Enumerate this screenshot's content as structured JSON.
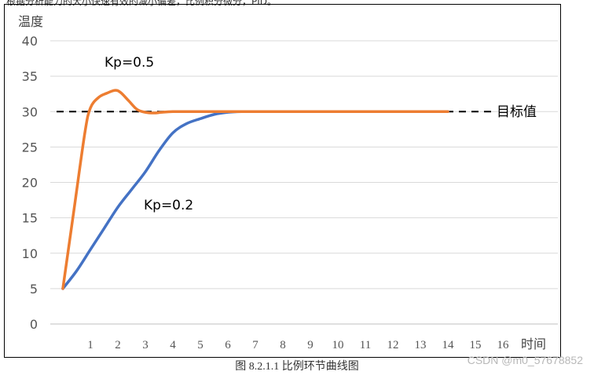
{
  "header_text": "根据分析能力的大小快速有效的减小偏差，比例积分微分，PID。",
  "caption": "图 8.2.1.1  比例环节曲线图",
  "watermark": "CSDN @m0_57678852",
  "chart_data": {
    "type": "line",
    "ylabel": "温度",
    "xlabel": "时间",
    "ylim": [
      0,
      40
    ],
    "yticks": [
      0,
      5,
      10,
      15,
      20,
      25,
      30,
      35,
      40
    ],
    "xlim": [
      0,
      17
    ],
    "xticks": [
      1,
      2,
      3,
      4,
      5,
      6,
      7,
      8,
      9,
      10,
      11,
      12,
      13,
      14,
      15,
      16
    ],
    "grid": true,
    "series": [
      {
        "name": "Kp=0.5",
        "color": "#ED7D31",
        "x": [
          0,
          0.4,
          0.8,
          1.0,
          1.3,
          1.6,
          1.9,
          2.1,
          2.4,
          2.7,
          3.0,
          3.3,
          3.6,
          4.0,
          5,
          6,
          7,
          8,
          9,
          10,
          11,
          12,
          13,
          14
        ],
        "y": [
          5,
          16,
          27,
          30.5,
          32,
          32.6,
          33,
          32.7,
          31.5,
          30.3,
          29.9,
          29.8,
          29.9,
          30,
          30,
          30,
          30,
          30,
          30,
          30,
          30,
          30,
          30,
          30
        ]
      },
      {
        "name": "Kp=0.2",
        "color": "#4472C4",
        "x": [
          0,
          0.5,
          1.0,
          1.5,
          2.0,
          2.5,
          3.0,
          3.5,
          4.0,
          4.5,
          5.0,
          5.5,
          6.0,
          6.5,
          7,
          8,
          9,
          10,
          11,
          12,
          13,
          14
        ],
        "y": [
          5,
          7.5,
          10.5,
          13.5,
          16.5,
          19,
          21.5,
          24.5,
          27,
          28.3,
          29,
          29.6,
          29.9,
          30,
          30,
          30,
          30,
          30,
          30,
          30,
          30,
          30
        ]
      }
    ],
    "reference_line": {
      "label": "目标值",
      "value": 30,
      "style": "dashed",
      "color": "#000000"
    }
  }
}
